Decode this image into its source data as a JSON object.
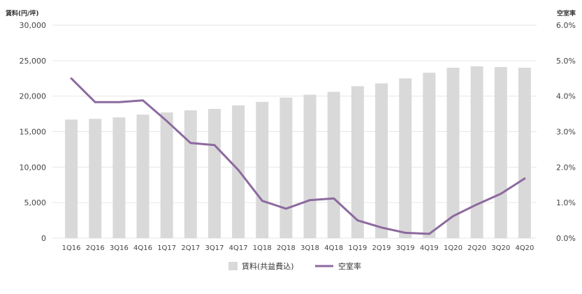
{
  "chart_data": {
    "type": "bar",
    "categories": [
      "1Q16",
      "2Q16",
      "3Q16",
      "4Q16",
      "1Q17",
      "2Q17",
      "3Q17",
      "4Q17",
      "1Q18",
      "2Q18",
      "3Q18",
      "4Q18",
      "1Q19",
      "2Q19",
      "3Q19",
      "4Q19",
      "1Q20",
      "2Q20",
      "3Q20",
      "4Q20"
    ],
    "series": [
      {
        "name": "賃料(共益費込)",
        "type": "bar",
        "axis": "left",
        "color": "#d9d9d9",
        "values": [
          16700,
          16800,
          17000,
          17400,
          17700,
          18000,
          18200,
          18700,
          19200,
          19800,
          20200,
          20600,
          21400,
          21800,
          22500,
          23300,
          24000,
          24200,
          24100,
          24000
        ]
      },
      {
        "name": "空室率",
        "type": "line",
        "axis": "right",
        "color": "#8c6a9f",
        "values": [
          4.5,
          3.83,
          3.83,
          3.88,
          3.3,
          2.68,
          2.62,
          1.92,
          1.05,
          0.83,
          1.07,
          1.12,
          0.5,
          0.3,
          0.15,
          0.12,
          0.62,
          0.95,
          1.25,
          1.68
        ]
      }
    ],
    "left_axis": {
      "label": "賃料(円/坪)",
      "ylim": [
        0,
        30000
      ],
      "ticks": [
        0,
        5000,
        10000,
        15000,
        20000,
        25000,
        30000
      ],
      "tick_labels": [
        "0",
        "5,000",
        "10,000",
        "15,000",
        "20,000",
        "25,000",
        "30,000"
      ]
    },
    "right_axis": {
      "label": "空室率",
      "ylim": [
        0,
        6
      ],
      "ticks": [
        0,
        1,
        2,
        3,
        4,
        5,
        6
      ],
      "tick_labels": [
        "0.0%",
        "1.0%",
        "2.0%",
        "3.0%",
        "4.0%",
        "5.0%",
        "6.0%"
      ]
    },
    "grid": true,
    "legend": {
      "placement": "bottom",
      "items": [
        "賃料(共益費込)",
        "空室率"
      ]
    }
  }
}
